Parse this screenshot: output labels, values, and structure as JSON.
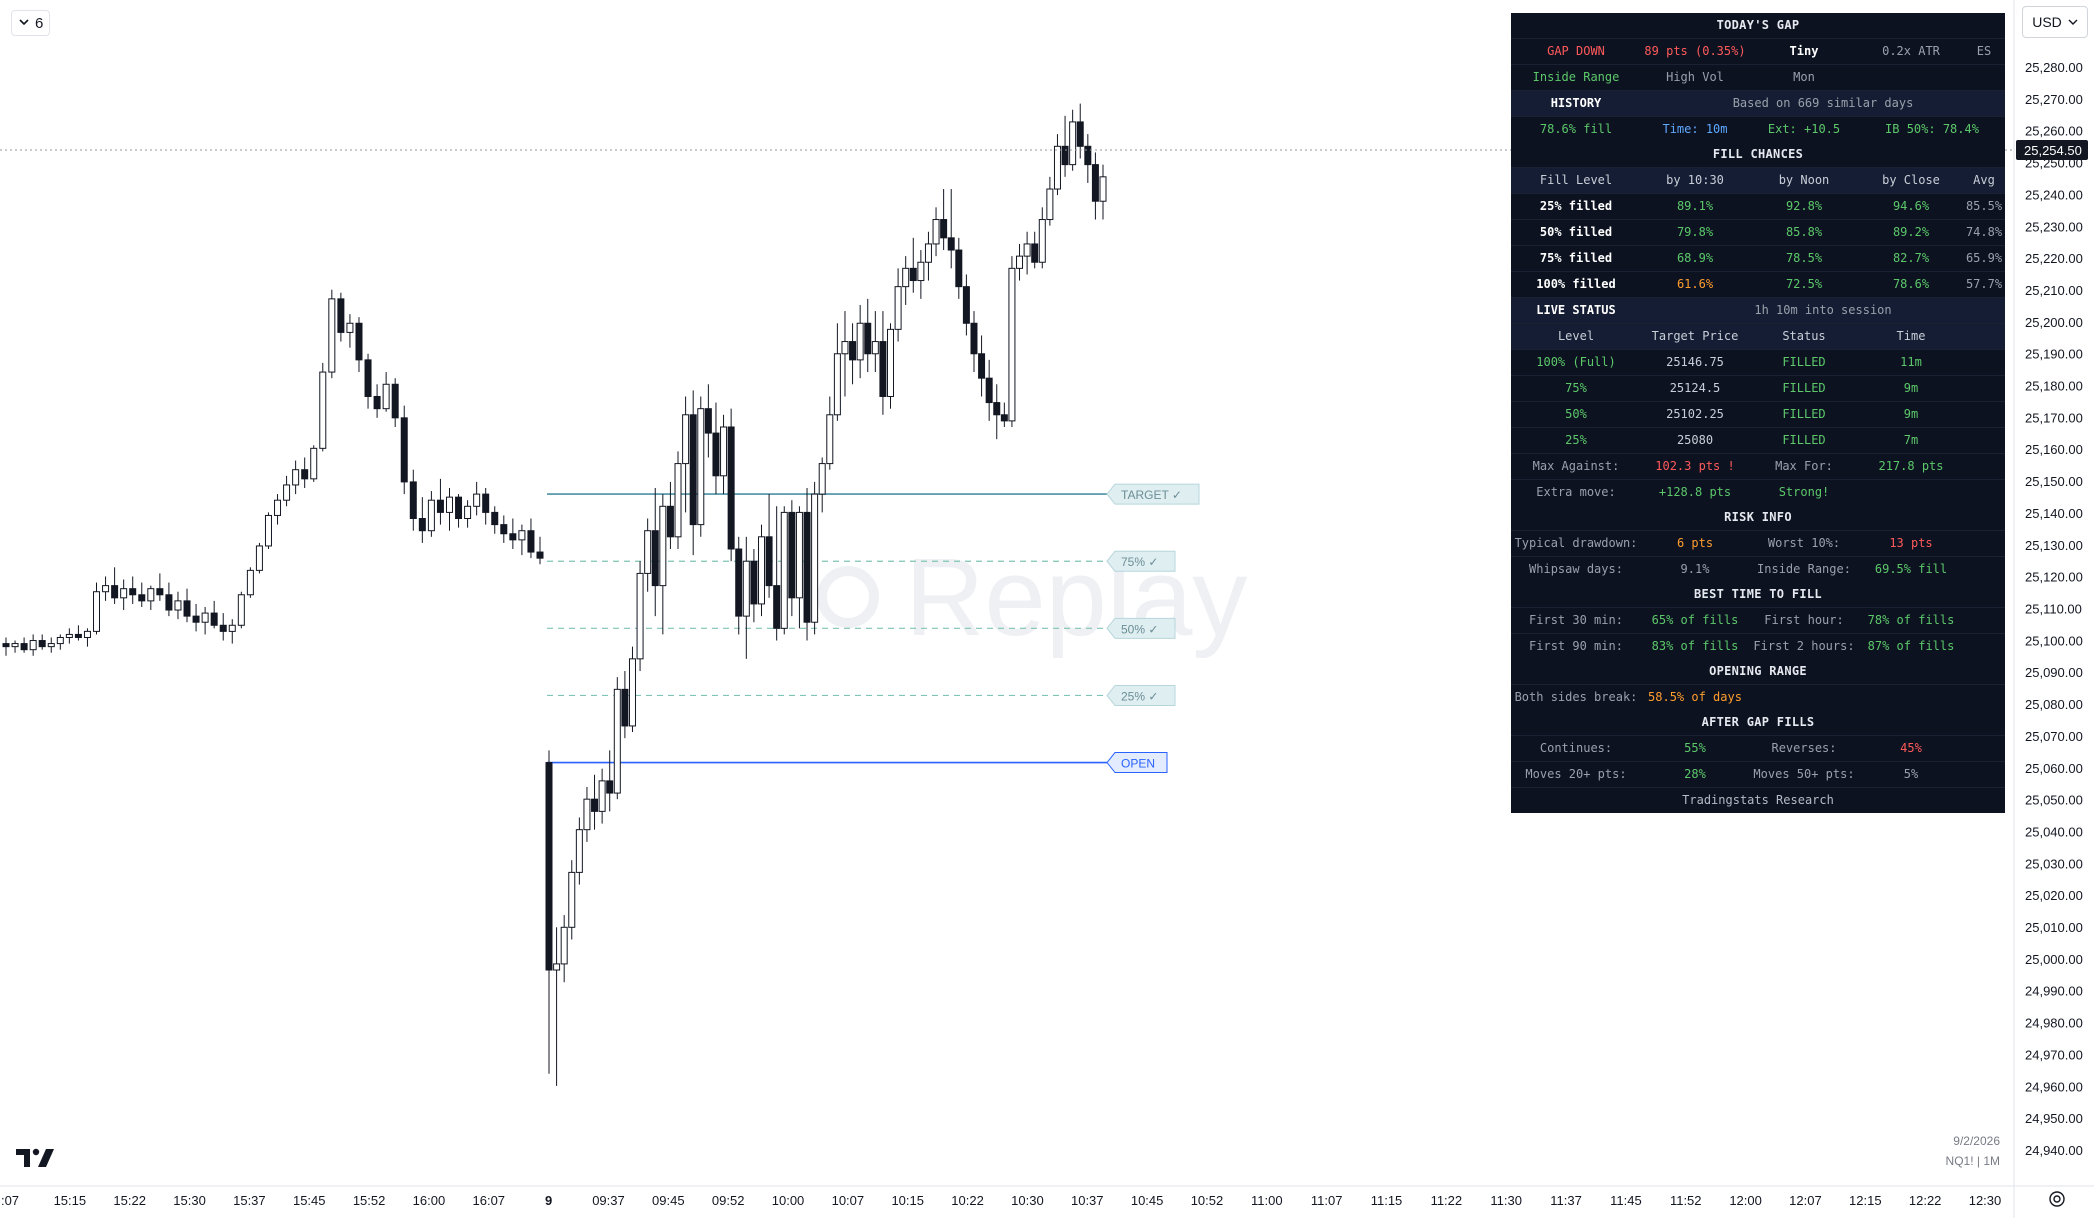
{
  "toolbar": {
    "collapse_value": "6",
    "currency": "USD"
  },
  "chart_data": {
    "type": "candlestick",
    "symbol": "NQ1! | 1M",
    "date": "9/2/2026",
    "ylim": [
      24935,
      25290
    ],
    "y_ticks": [
      "25,280.00",
      "25,270.00",
      "25,260.00",
      "25,250.00",
      "25,240.00",
      "25,230.00",
      "25,220.00",
      "25,210.00",
      "25,200.00",
      "25,190.00",
      "25,180.00",
      "25,170.00",
      "25,160.00",
      "25,150.00",
      "25,140.00",
      "25,130.00",
      "25,120.00",
      "25,110.00",
      "25,100.00",
      "25,090.00",
      "25,080.00",
      "25,070.00",
      "25,060.00",
      "25,050.00",
      "25,040.00",
      "25,030.00",
      "25,020.00",
      "25,010.00",
      "25,000.00",
      "24,990.00",
      "24,980.00",
      "24,970.00",
      "24,960.00",
      "24,950.00",
      "24,940.00"
    ],
    "x_ticks": [
      ":07",
      "15:15",
      "15:22",
      "15:30",
      "15:37",
      "15:45",
      "15:52",
      "16:00",
      "16:07",
      "9",
      "09:37",
      "09:45",
      "09:52",
      "10:00",
      "10:07",
      "10:15",
      "10:22",
      "10:30",
      "10:37",
      "10:45",
      "10:52",
      "11:00",
      "11:07",
      "11:15",
      "11:22",
      "11:30",
      "11:37",
      "11:45",
      "11:52",
      "12:00",
      "12:07",
      "12:15",
      "12:22",
      "12:30"
    ],
    "last_price": "25,254.50",
    "levels": [
      {
        "name": "TARGET ✓",
        "price": 25150,
        "style": "solid",
        "color": "#4a90a4"
      },
      {
        "name": "75% ✓",
        "price": 25128,
        "style": "dashed",
        "color": "#7fc4b4"
      },
      {
        "name": "50% ✓",
        "price": 25106,
        "style": "dashed",
        "color": "#7fc4b4"
      },
      {
        "name": "25% ✓",
        "price": 25084,
        "style": "dashed",
        "color": "#7fc4b4"
      },
      {
        "name": "OPEN",
        "price": 25062,
        "style": "solid",
        "color": "#2962ff"
      }
    ],
    "watermark": "Replay",
    "candles": [
      [
        25101,
        25103,
        25097,
        25100
      ],
      [
        25100,
        25102,
        25098,
        25101
      ],
      [
        25101,
        25103,
        25098,
        25099
      ],
      [
        25099,
        25104,
        25097,
        25102
      ],
      [
        25102,
        25104,
        25099,
        25100
      ],
      [
        25100,
        25103,
        25098,
        25101
      ],
      [
        25101,
        25104,
        25099,
        25103
      ],
      [
        25103,
        25106,
        25101,
        25104
      ],
      [
        25104,
        25107,
        25102,
        25103
      ],
      [
        25103,
        25106,
        25100,
        25105
      ],
      [
        25105,
        25121,
        25104,
        25118
      ],
      [
        25118,
        25123,
        25115,
        25120
      ],
      [
        25120,
        25126,
        25114,
        25116
      ],
      [
        25116,
        25122,
        25112,
        25119
      ],
      [
        25119,
        25123,
        25114,
        25117
      ],
      [
        25117,
        25121,
        25113,
        25115
      ],
      [
        25115,
        25120,
        25112,
        25119
      ],
      [
        25119,
        25124,
        25115,
        25117
      ],
      [
        25117,
        25121,
        25110,
        25112
      ],
      [
        25112,
        25118,
        25109,
        25115
      ],
      [
        25115,
        25119,
        25108,
        25110
      ],
      [
        25110,
        25114,
        25105,
        25108
      ],
      [
        25108,
        25113,
        25104,
        25111
      ],
      [
        25111,
        25115,
        25106,
        25107
      ],
      [
        25107,
        25111,
        25102,
        25105
      ],
      [
        25105,
        25109,
        25101,
        25107
      ],
      [
        25107,
        25118,
        25106,
        25117
      ],
      [
        25117,
        25126,
        25116,
        25125
      ],
      [
        25125,
        25134,
        25124,
        25133
      ],
      [
        25133,
        25144,
        25132,
        25143
      ],
      [
        25143,
        25150,
        25140,
        25148
      ],
      [
        25148,
        25156,
        25146,
        25153
      ],
      [
        25153,
        25161,
        25150,
        25158
      ],
      [
        25158,
        25162,
        25152,
        25155
      ],
      [
        25155,
        25166,
        25154,
        25165
      ],
      [
        25165,
        25193,
        25164,
        25190
      ],
      [
        25190,
        25217,
        25188,
        25214
      ],
      [
        25214,
        25216,
        25200,
        25203
      ],
      [
        25203,
        25209,
        25198,
        25206
      ],
      [
        25206,
        25208,
        25190,
        25194
      ],
      [
        25194,
        25196,
        25178,
        25182
      ],
      [
        25182,
        25186,
        25175,
        25178
      ],
      [
        25178,
        25190,
        25177,
        25186
      ],
      [
        25186,
        25188,
        25172,
        25175
      ],
      [
        25175,
        25179,
        25150,
        25154
      ],
      [
        25154,
        25158,
        25138,
        25142
      ],
      [
        25142,
        25149,
        25134,
        25138
      ],
      [
        25138,
        25151,
        25136,
        25148
      ],
      [
        25148,
        25155,
        25140,
        25144
      ],
      [
        25144,
        25152,
        25138,
        25149
      ],
      [
        25149,
        25150,
        25139,
        25142
      ],
      [
        25142,
        25148,
        25139,
        25146
      ],
      [
        25146,
        25154,
        25143,
        25150
      ],
      [
        25150,
        25152,
        25140,
        25144
      ],
      [
        25144,
        25146,
        25137,
        25140
      ],
      [
        25140,
        25143,
        25134,
        25137
      ],
      [
        25137,
        25142,
        25132,
        25135
      ],
      [
        25135,
        25140,
        25130,
        25138
      ],
      [
        25138,
        25142,
        25129,
        25131
      ],
      [
        25131,
        25136,
        25127,
        25129
      ],
      [
        25062,
        25066,
        24960,
        24994
      ],
      [
        24994,
        25008,
        24956,
        24996
      ],
      [
        24996,
        25012,
        24990,
        25008
      ],
      [
        25008,
        25030,
        25004,
        25026
      ],
      [
        25026,
        25044,
        25022,
        25040
      ],
      [
        25040,
        25054,
        25036,
        25050
      ],
      [
        25050,
        25058,
        25040,
        25046
      ],
      [
        25046,
        25060,
        25042,
        25056
      ],
      [
        25056,
        25066,
        25046,
        25052
      ],
      [
        25052,
        25090,
        25050,
        25086
      ],
      [
        25086,
        25092,
        25070,
        25074
      ],
      [
        25074,
        25100,
        25072,
        25096
      ],
      [
        25096,
        25128,
        25092,
        25124
      ],
      [
        25124,
        25142,
        25118,
        25138
      ],
      [
        25138,
        25152,
        25110,
        25120
      ],
      [
        25120,
        25150,
        25104,
        25146
      ],
      [
        25146,
        25154,
        25132,
        25136
      ],
      [
        25136,
        25164,
        25132,
        25160
      ],
      [
        25160,
        25182,
        25144,
        25176
      ],
      [
        25176,
        25184,
        25130,
        25140
      ],
      [
        25140,
        25182,
        25136,
        25178
      ],
      [
        25178,
        25186,
        25162,
        25170
      ],
      [
        25170,
        25180,
        25150,
        25156
      ],
      [
        25156,
        25176,
        25150,
        25172
      ],
      [
        25172,
        25178,
        25128,
        25132
      ],
      [
        25132,
        25136,
        25104,
        25110
      ],
      [
        25110,
        25136,
        25096,
        25128
      ],
      [
        25128,
        25132,
        25108,
        25114
      ],
      [
        25114,
        25140,
        25110,
        25136
      ],
      [
        25136,
        25150,
        25116,
        25120
      ],
      [
        25120,
        25146,
        25102,
        25106
      ],
      [
        25106,
        25146,
        25104,
        25144
      ],
      [
        25144,
        25148,
        25110,
        25116
      ],
      [
        25116,
        25146,
        25106,
        25144
      ],
      [
        25144,
        25152,
        25102,
        25108
      ],
      [
        25108,
        25154,
        25104,
        25150
      ],
      [
        25150,
        25162,
        25144,
        25160
      ],
      [
        25160,
        25182,
        25158,
        25176
      ],
      [
        25176,
        25206,
        25174,
        25196
      ],
      [
        25196,
        25210,
        25182,
        25200
      ],
      [
        25200,
        25206,
        25186,
        25194
      ],
      [
        25194,
        25212,
        25188,
        25206
      ],
      [
        25206,
        25214,
        25190,
        25196
      ],
      [
        25196,
        25210,
        25190,
        25200
      ],
      [
        25200,
        25210,
        25176,
        25182
      ],
      [
        25182,
        25206,
        25178,
        25204
      ],
      [
        25204,
        25224,
        25200,
        25218
      ],
      [
        25218,
        25228,
        25212,
        25224
      ],
      [
        25224,
        25234,
        25216,
        25220
      ],
      [
        25220,
        25230,
        25214,
        25226
      ],
      [
        25226,
        25236,
        25220,
        25232
      ],
      [
        25232,
        25244,
        25228,
        25240
      ],
      [
        25240,
        25250,
        25230,
        25234
      ],
      [
        25234,
        25250,
        25224,
        25230
      ],
      [
        25230,
        25234,
        25214,
        25218
      ],
      [
        25218,
        25222,
        25202,
        25206
      ],
      [
        25206,
        25210,
        25190,
        25196
      ],
      [
        25196,
        25202,
        25182,
        25188
      ],
      [
        25188,
        25194,
        25174,
        25180
      ],
      [
        25180,
        25186,
        25168,
        25176
      ],
      [
        25176,
        25180,
        25172,
        25174
      ],
      [
        25174,
        25228,
        25172,
        25224
      ],
      [
        25224,
        25232,
        25220,
        25228
      ],
      [
        25228,
        25236,
        25222,
        25232
      ],
      [
        25232,
        25236,
        25224,
        25226
      ],
      [
        25226,
        25244,
        25224,
        25240
      ],
      [
        25240,
        25254,
        25238,
        25250
      ],
      [
        25250,
        25268,
        25248,
        25264
      ],
      [
        25264,
        25274,
        25254,
        25258
      ],
      [
        25258,
        25276,
        25256,
        25272
      ],
      [
        25272,
        25278,
        25260,
        25264
      ],
      [
        25264,
        25268,
        25252,
        25258
      ],
      [
        25258,
        25262,
        25240,
        25246
      ],
      [
        25246,
        25258,
        25240,
        25254
      ]
    ]
  },
  "panel": {
    "title": "TODAY'S GAP",
    "gap_row": [
      "GAP DOWN",
      "89 pts (0.35%)",
      "Tiny",
      "0.2x ATR",
      "ES"
    ],
    "range_row": [
      "Inside Range",
      "High Vol",
      "Mon"
    ],
    "history_label": "HISTORY",
    "history_note": "Based on 669 similar days",
    "history_stats": [
      "78.6% fill",
      "Time: 10m",
      "Ext: +10.5",
      "IB 50%: 78.4%"
    ],
    "fill_chances_title": "FILL CHANCES",
    "fill_header": [
      "Fill Level",
      "by 10:30",
      "by Noon",
      "by Close",
      "Avg"
    ],
    "fill_rows": [
      [
        "25% filled",
        "89.1%",
        "92.8%",
        "94.6%",
        "85.5%"
      ],
      [
        "50% filled",
        "79.8%",
        "85.8%",
        "89.2%",
        "74.8%"
      ],
      [
        "75% filled",
        "68.9%",
        "78.5%",
        "82.7%",
        "65.9%"
      ],
      [
        "100% filled",
        "61.6%",
        "72.5%",
        "78.6%",
        "57.7%"
      ]
    ],
    "live_label": "LIVE STATUS",
    "live_note": "1h 10m into session",
    "live_header": [
      "Level",
      "Target Price",
      "Status",
      "Time"
    ],
    "live_rows": [
      [
        "100% (Full)",
        "25146.75",
        "FILLED",
        "11m"
      ],
      [
        "75%",
        "25124.5",
        "FILLED",
        "9m"
      ],
      [
        "50%",
        "25102.25",
        "FILLED",
        "9m"
      ],
      [
        "25%",
        "25080",
        "FILLED",
        "7m"
      ]
    ],
    "max_row": [
      "Max Against:",
      "102.3 pts !",
      "Max For:",
      "217.8 pts"
    ],
    "extra_row": [
      "Extra move:",
      "+128.8 pts",
      "Strong!"
    ],
    "risk_title": "RISK INFO",
    "risk_rows": [
      [
        "Typical drawdown:",
        "6 pts",
        "Worst 10%:",
        "13 pts"
      ],
      [
        "Whipsaw days:",
        "9.1%",
        "Inside Range:",
        "69.5% fill"
      ]
    ],
    "best_title": "BEST TIME TO FILL",
    "best_rows": [
      [
        "First 30 min:",
        "65% of fills",
        "First hour:",
        "78% of fills"
      ],
      [
        "First 90 min:",
        "83% of fills",
        "First 2 hours:",
        "87% of fills"
      ]
    ],
    "opening_title": "OPENING RANGE",
    "opening_row": [
      "Both sides break:",
      "58.5% of days"
    ],
    "after_title": "AFTER GAP FILLS",
    "after_rows": [
      [
        "Continues:",
        "55%",
        "Reverses:",
        "45%"
      ],
      [
        "Moves 20+ pts:",
        "28%",
        "Moves 50+ pts:",
        "5%"
      ]
    ],
    "footer": "Tradingstats Research"
  }
}
